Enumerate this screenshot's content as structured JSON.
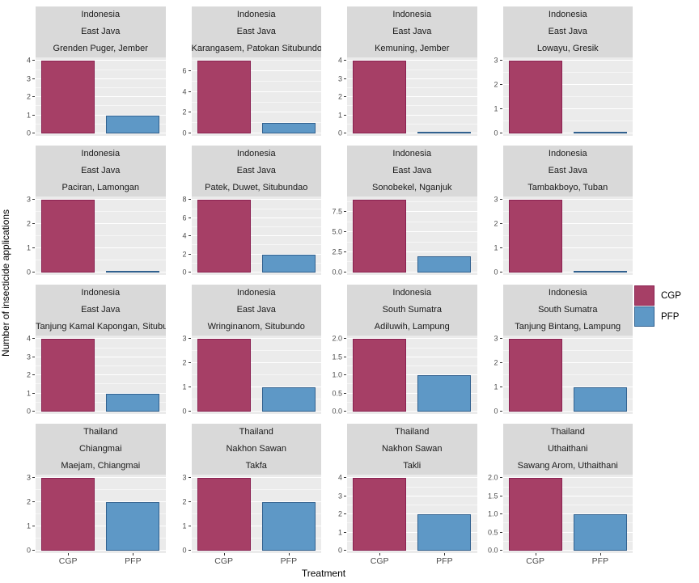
{
  "figure": {
    "y_axis_title": "Number of insecticide applications",
    "x_axis_title": "Treatment",
    "x_categories": [
      "CGP",
      "PFP"
    ]
  },
  "legend": {
    "items": [
      {
        "label": "CGP",
        "fill": "#A63F66",
        "border": "#8A2151"
      },
      {
        "label": "PFP",
        "fill": "#5E98C6",
        "border": "#31618F"
      }
    ]
  },
  "colors": {
    "strip_bg": "#D9D9D9",
    "panel_bg": "#EBEBEB",
    "gridline": "#FFFFFF",
    "cgp_fill": "#A63F66",
    "cgp_border": "#8A2151",
    "pfp_fill": "#5E98C6",
    "pfp_border": "#31618F"
  },
  "chart_data": {
    "type": "bar",
    "facet_layout": {
      "rows": 4,
      "cols": 4,
      "free_y_scales": true
    },
    "series_names": [
      "CGP",
      "PFP"
    ],
    "facets": [
      {
        "country": "Indonesia",
        "region": "East Java",
        "site": "Grenden Puger, Jember",
        "yticks": [
          "0",
          "1",
          "2",
          "3",
          "4"
        ],
        "values": {
          "CGP": 4,
          "PFP": 1
        }
      },
      {
        "country": "Indonesia",
        "region": "East Java",
        "site": "Karangasem, Patokan Situbundo",
        "yticks": [
          "0",
          "2",
          "4",
          "6"
        ],
        "values": {
          "CGP": 7,
          "PFP": 1
        }
      },
      {
        "country": "Indonesia",
        "region": "East Java",
        "site": "Kemuning, Jember",
        "yticks": [
          "0",
          "1",
          "2",
          "3",
          "4"
        ],
        "values": {
          "CGP": 4,
          "PFP": 0
        }
      },
      {
        "country": "Indonesia",
        "region": "East Java",
        "site": "Lowayu, Gresik",
        "yticks": [
          "0",
          "1",
          "2",
          "3"
        ],
        "values": {
          "CGP": 3,
          "PFP": 0
        }
      },
      {
        "country": "Indonesia",
        "region": "East Java",
        "site": "Paciran, Lamongan",
        "yticks": [
          "0",
          "1",
          "2",
          "3"
        ],
        "values": {
          "CGP": 3,
          "PFP": 0
        }
      },
      {
        "country": "Indonesia",
        "region": "East Java",
        "site": "Patek, Duwet, Situbundao",
        "yticks": [
          "0",
          "2",
          "4",
          "6",
          "8"
        ],
        "values": {
          "CGP": 8,
          "PFP": 2
        }
      },
      {
        "country": "Indonesia",
        "region": "East Java",
        "site": "Sonobekel, Nganjuk",
        "yticks": [
          "0.0",
          "2.5",
          "5.0",
          "7.5"
        ],
        "values": {
          "CGP": 9,
          "PFP": 2
        }
      },
      {
        "country": "Indonesia",
        "region": "East Java",
        "site": "Tambakboyo, Tuban",
        "yticks": [
          "0",
          "1",
          "2",
          "3"
        ],
        "values": {
          "CGP": 3,
          "PFP": 0
        }
      },
      {
        "country": "Indonesia",
        "region": "East Java",
        "site": "Tanjung Kamal Kapongan, Situbundo",
        "yticks": [
          "0",
          "1",
          "2",
          "3",
          "4"
        ],
        "values": {
          "CGP": 4,
          "PFP": 1
        }
      },
      {
        "country": "Indonesia",
        "region": "East Java",
        "site": "Wringinanom, Situbundo",
        "yticks": [
          "0",
          "1",
          "2",
          "3"
        ],
        "values": {
          "CGP": 3,
          "PFP": 1
        }
      },
      {
        "country": "Indonesia",
        "region": "South Sumatra",
        "site": "Adiluwih, Lampung",
        "yticks": [
          "0.0",
          "0.5",
          "1.0",
          "1.5",
          "2.0"
        ],
        "values": {
          "CGP": 2,
          "PFP": 1
        }
      },
      {
        "country": "Indonesia",
        "region": "South Sumatra",
        "site": "Tanjung Bintang, Lampung",
        "yticks": [
          "0",
          "1",
          "2",
          "3"
        ],
        "values": {
          "CGP": 3,
          "PFP": 1
        }
      },
      {
        "country": "Thailand",
        "region": "Chiangmai",
        "site": "Maejam, Chiangmai",
        "yticks": [
          "0",
          "1",
          "2",
          "3"
        ],
        "values": {
          "CGP": 3,
          "PFP": 2
        }
      },
      {
        "country": "Thailand",
        "region": "Nakhon Sawan",
        "site": "Takfa",
        "yticks": [
          "0",
          "1",
          "2",
          "3"
        ],
        "values": {
          "CGP": 3,
          "PFP": 2
        }
      },
      {
        "country": "Thailand",
        "region": "Nakhon Sawan",
        "site": "Takli",
        "yticks": [
          "0",
          "1",
          "2",
          "3",
          "4"
        ],
        "values": {
          "CGP": 4,
          "PFP": 2
        }
      },
      {
        "country": "Thailand",
        "region": "Uthaithani",
        "site": "Sawang Arom, Uthaithani",
        "yticks": [
          "0.0",
          "0.5",
          "1.0",
          "1.5",
          "2.0"
        ],
        "values": {
          "CGP": 2,
          "PFP": 1
        }
      }
    ]
  }
}
